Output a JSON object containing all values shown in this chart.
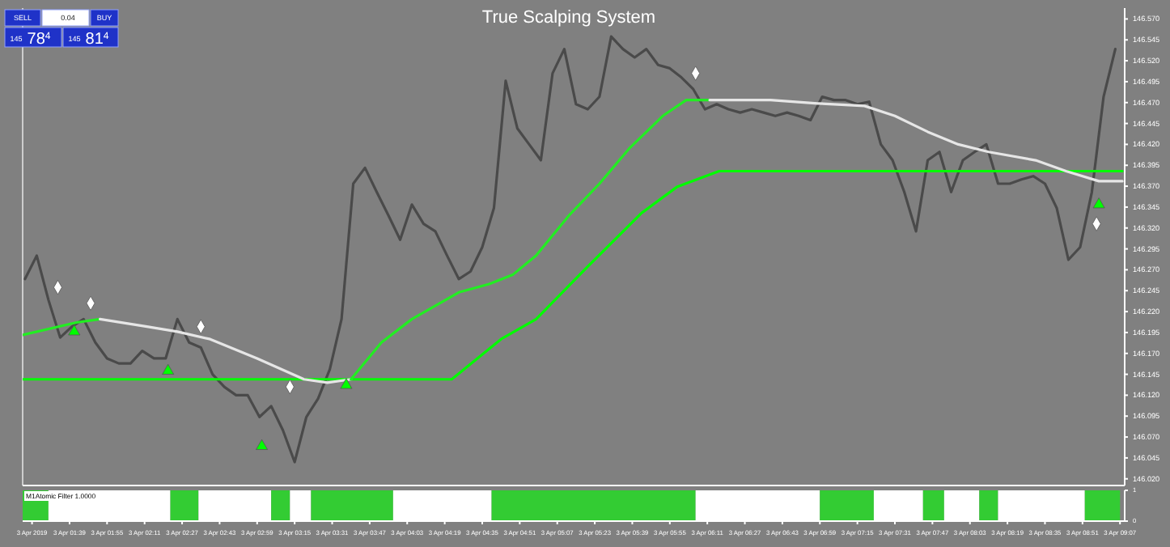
{
  "chart_data": [
    {
      "type": "line",
      "title": "True Scalping System",
      "annotations": [
        "SELL",
        "0.04",
        "BUY",
        "145",
        "78$^{4}$",
        "145",
        "81$^{4}$"
      ],
      "xlim": [
        "2019-04-03T01:19",
        "2019-04-03T09:09"
      ],
      "ylim": [
        146.012,
        146.583
      ],
      "yticks": [
        {
          "value": 146.57,
          "label": "146.570"
        },
        {
          "value": 146.545,
          "label": "146.545"
        },
        {
          "value": 146.52,
          "label": "146.520"
        },
        {
          "value": 146.495,
          "label": "146.495"
        },
        {
          "value": 146.47,
          "label": "146.470"
        },
        {
          "value": 146.445,
          "label": "146.445"
        },
        {
          "value": 146.42,
          "label": "146.420"
        },
        {
          "value": 146.395,
          "label": "146.395"
        },
        {
          "value": 146.37,
          "label": "146.370"
        },
        {
          "value": 146.345,
          "label": "146.345"
        },
        {
          "value": 146.32,
          "label": "146.320"
        },
        {
          "value": 146.295,
          "label": "146.295"
        },
        {
          "value": 146.27,
          "label": "146.270"
        },
        {
          "value": 146.245,
          "label": "146.245"
        },
        {
          "value": 146.22,
          "label": "146.220"
        },
        {
          "value": 146.195,
          "label": "146.195"
        },
        {
          "value": 146.17,
          "label": "146.170"
        },
        {
          "value": 146.145,
          "label": "146.145"
        },
        {
          "value": 146.12,
          "label": "146.120"
        },
        {
          "value": 146.095,
          "label": "146.095"
        },
        {
          "value": 146.07,
          "label": "146.070"
        },
        {
          "value": 146.045,
          "label": "146.045"
        },
        {
          "value": 146.02,
          "label": "146.020"
        }
      ],
      "tick_labels": "y",
      "grid": false,
      "series": [
        {
          "color": "#4a4a4a",
          "x": [
            "2019-04-03T01:20",
            "2019-04-03T01:25",
            "2019-04-03T01:30",
            "2019-04-03T01:35",
            "2019-04-03T01:40",
            "2019-04-03T01:45",
            "2019-04-03T01:50",
            "2019-04-03T01:55",
            "2019-04-03T02:00",
            "2019-04-03T02:05",
            "2019-04-03T02:10",
            "2019-04-03T02:15",
            "2019-04-03T02:20",
            "2019-04-03T02:25",
            "2019-04-03T02:30",
            "2019-04-03T02:35",
            "2019-04-03T02:40",
            "2019-04-03T02:45",
            "2019-04-03T02:50",
            "2019-04-03T02:55",
            "2019-04-03T03:00",
            "2019-04-03T03:05",
            "2019-04-03T03:10",
            "2019-04-03T03:15",
            "2019-04-03T03:20",
            "2019-04-03T03:25",
            "2019-04-03T03:30",
            "2019-04-03T03:35",
            "2019-04-03T03:40",
            "2019-04-03T03:45",
            "2019-04-03T03:50",
            "2019-04-03T03:55",
            "2019-04-03T04:00",
            "2019-04-03T04:05",
            "2019-04-03T04:10",
            "2019-04-03T04:15",
            "2019-04-03T04:20",
            "2019-04-03T04:25",
            "2019-04-03T04:30",
            "2019-04-03T04:35",
            "2019-04-03T04:40",
            "2019-04-03T04:45",
            "2019-04-03T04:50",
            "2019-04-03T04:55",
            "2019-04-03T05:00",
            "2019-04-03T05:05",
            "2019-04-03T05:10",
            "2019-04-03T05:15",
            "2019-04-03T05:20",
            "2019-04-03T05:25",
            "2019-04-03T05:30",
            "2019-04-03T05:35",
            "2019-04-03T05:40",
            "2019-04-03T05:45",
            "2019-04-03T05:50",
            "2019-04-03T05:55",
            "2019-04-03T06:00",
            "2019-04-03T06:05",
            "2019-04-03T06:10",
            "2019-04-03T06:15",
            "2019-04-03T06:20",
            "2019-04-03T06:25",
            "2019-04-03T06:30",
            "2019-04-03T06:35",
            "2019-04-03T06:40",
            "2019-04-03T06:45",
            "2019-04-03T06:50",
            "2019-04-03T06:55",
            "2019-04-03T07:00",
            "2019-04-03T07:05",
            "2019-04-03T07:10",
            "2019-04-03T07:15",
            "2019-04-03T07:20",
            "2019-04-03T07:25",
            "2019-04-03T07:30",
            "2019-04-03T07:35",
            "2019-04-03T07:40",
            "2019-04-03T07:45",
            "2019-04-03T07:50",
            "2019-04-03T07:55",
            "2019-04-03T08:00",
            "2019-04-03T08:05",
            "2019-04-03T08:10",
            "2019-04-03T08:15",
            "2019-04-03T08:20",
            "2019-04-03T08:25",
            "2019-04-03T08:30",
            "2019-04-03T08:35",
            "2019-04-03T08:40",
            "2019-04-03T08:45",
            "2019-04-03T08:50",
            "2019-04-03T08:55",
            "2019-04-03T09:00",
            "2019-04-03T09:05"
          ],
          "values": [
            146.259,
            146.287,
            146.234,
            146.189,
            146.202,
            146.211,
            146.183,
            146.164,
            146.158,
            146.158,
            146.173,
            146.164,
            146.164,
            146.211,
            146.183,
            146.177,
            146.145,
            146.13,
            146.12,
            146.12,
            146.094,
            146.107,
            146.078,
            146.04,
            146.094,
            146.116,
            146.151,
            146.211,
            146.373,
            146.392,
            146.363,
            146.335,
            146.306,
            146.348,
            146.325,
            146.316,
            146.287,
            146.259,
            146.268,
            146.297,
            146.344,
            146.496,
            146.439,
            146.42,
            146.401,
            146.505,
            146.534,
            146.468,
            146.462,
            146.477,
            146.549,
            146.534,
            146.524,
            146.534,
            146.515,
            146.511,
            146.5,
            146.486,
            146.462,
            146.468,
            146.462,
            146.458,
            146.462,
            146.458,
            146.454,
            146.458,
            146.454,
            146.449,
            146.477,
            146.473,
            146.473,
            146.468,
            146.471,
            146.42,
            146.401,
            146.363,
            146.316,
            146.401,
            146.411,
            146.363,
            146.401,
            146.411,
            146.42,
            146.373,
            146.373,
            146.378,
            146.382,
            146.373,
            146.344,
            146.282,
            146.297,
            146.363,
            146.477,
            146.534
          ]
        },
        {
          "color": "#00ff00",
          "x": [
            "2019-04-03T01:19",
            "2019-04-03T04:22",
            "2019-04-03T04:43",
            "2019-04-03T04:58",
            "2019-04-03T05:20",
            "2019-04-03T05:43",
            "2019-04-03T05:58",
            "2019-04-03T06:16",
            "2019-04-03T06:31",
            "2019-04-03T09:08"
          ],
          "values": [
            146.139,
            146.139,
            146.187,
            146.211,
            146.274,
            146.338,
            146.369,
            146.388,
            146.388,
            146.388
          ]
        },
        {
          "color": "#22ee22",
          "x": [
            "2019-04-03T01:19",
            "2019-04-03T01:42",
            "2019-04-03T01:52"
          ],
          "values": [
            146.192,
            146.207,
            146.211
          ]
        },
        {
          "color": "#e6e6e6",
          "x": [
            "2019-04-03T01:52",
            "2019-04-03T02:12",
            "2019-04-03T02:25",
            "2019-04-03T02:39",
            "2019-04-03T02:59",
            "2019-04-03T03:19",
            "2019-04-03T03:29",
            "2019-04-03T03:39"
          ],
          "values": [
            146.211,
            146.202,
            146.196,
            146.187,
            146.164,
            146.139,
            146.135,
            146.139
          ]
        },
        {
          "color": "#22ee22",
          "x": [
            "2019-04-03T03:39",
            "2019-04-03T03:52",
            "2019-04-03T04:05",
            "2019-04-03T04:25",
            "2019-04-03T04:38",
            "2019-04-03T04:48",
            "2019-04-03T04:58",
            "2019-04-03T05:12",
            "2019-04-03T05:25",
            "2019-04-03T05:38",
            "2019-04-03T05:52",
            "2019-04-03T06:02",
            "2019-04-03T06:12"
          ],
          "values": [
            146.139,
            146.183,
            146.211,
            146.243,
            146.253,
            146.264,
            146.287,
            146.335,
            146.373,
            146.416,
            146.454,
            146.473,
            146.473
          ]
        },
        {
          "color": "#e6e6e6",
          "x": [
            "2019-04-03T06:12",
            "2019-04-03T06:38",
            "2019-04-03T06:58",
            "2019-04-03T07:18",
            "2019-04-03T07:31",
            "2019-04-03T07:45",
            "2019-04-03T07:58",
            "2019-04-03T08:11",
            "2019-04-03T08:31",
            "2019-04-03T08:44",
            "2019-04-03T08:58",
            "2019-04-03T09:08"
          ],
          "values": [
            146.473,
            146.473,
            146.469,
            146.466,
            146.454,
            146.435,
            146.42,
            146.411,
            146.401,
            146.388,
            146.376,
            146.376
          ]
        },
        {
          "type": "scatter",
          "marker": "triangle",
          "color": "#00ff00",
          "x": [
            "2019-04-03T01:41",
            "2019-04-03T02:21",
            "2019-04-03T03:01",
            "2019-04-03T03:37",
            "2019-04-03T08:58"
          ],
          "values": [
            146.196,
            146.149,
            146.059,
            146.132,
            146.348
          ]
        },
        {
          "type": "scatter",
          "marker": "diamond",
          "color": "#ffffff",
          "x": [
            "2019-04-03T01:34",
            "2019-04-03T01:48",
            "2019-04-03T02:35",
            "2019-04-03T03:13",
            "2019-04-03T06:06",
            "2019-04-03T08:57"
          ],
          "values": [
            146.249,
            146.23,
            146.202,
            146.13,
            146.505,
            146.325
          ]
        }
      ]
    },
    {
      "type": "histogram",
      "title": "M1Atomic Filter 1.0000",
      "bins": [
        "2019-04-03T01:19",
        "2019-04-03T01:30",
        "2019-04-03T02:22",
        "2019-04-03T02:34",
        "2019-04-03T03:05",
        "2019-04-03T03:13",
        "2019-04-03T03:22",
        "2019-04-03T03:57",
        "2019-04-03T04:39",
        "2019-04-03T06:06",
        "2019-04-03T06:59",
        "2019-04-03T07:22",
        "2019-04-03T07:43",
        "2019-04-03T07:52",
        "2019-04-03T08:07",
        "2019-04-03T08:15",
        "2019-04-03T08:52",
        "2019-04-03T09:07"
      ],
      "values": [
        1,
        1,
        1,
        1,
        1,
        1,
        1,
        1,
        1,
        1,
        1,
        1,
        1,
        1,
        1,
        1,
        1
      ],
      "colors": [
        "#33cc33",
        "#ffffff",
        "#33cc33",
        "#ffffff",
        "#33cc33",
        "#ffffff",
        "#33cc33",
        "#ffffff",
        "#33cc33",
        "#ffffff",
        "#33cc33",
        "#ffffff",
        "#33cc33",
        "#ffffff",
        "#33cc33",
        "#ffffff",
        "#33cc33"
      ],
      "xlim": [
        "2019-04-03T01:19",
        "2019-04-03T09:09"
      ],
      "ylim": [
        0,
        1
      ],
      "yticks": [
        0,
        1
      ],
      "xticks": [
        {
          "value": "2019-04-03T01:23",
          "label": "3 Apr 2019"
        },
        {
          "value": "2019-04-03T01:39",
          "label": "3 Apr 01:39"
        },
        {
          "value": "2019-04-03T01:55",
          "label": "3 Apr 01:55"
        },
        {
          "value": "2019-04-03T02:11",
          "label": "3 Apr 02:11"
        },
        {
          "value": "2019-04-03T02:27",
          "label": "3 Apr 02:27"
        },
        {
          "value": "2019-04-03T02:43",
          "label": "3 Apr 02:43"
        },
        {
          "value": "2019-04-03T02:59",
          "label": "3 Apr 02:59"
        },
        {
          "value": "2019-04-03T03:15",
          "label": "3 Apr 03:15"
        },
        {
          "value": "2019-04-03T03:31",
          "label": "3 Apr 03:31"
        },
        {
          "value": "2019-04-03T03:47",
          "label": "3 Apr 03:47"
        },
        {
          "value": "2019-04-03T04:03",
          "label": "3 Apr 04:03"
        },
        {
          "value": "2019-04-03T04:19",
          "label": "3 Apr 04:19"
        },
        {
          "value": "2019-04-03T04:35",
          "label": "3 Apr 04:35"
        },
        {
          "value": "2019-04-03T04:51",
          "label": "3 Apr 04:51"
        },
        {
          "value": "2019-04-03T05:07",
          "label": "3 Apr 05:07"
        },
        {
          "value": "2019-04-03T05:23",
          "label": "3 Apr 05:23"
        },
        {
          "value": "2019-04-03T05:39",
          "label": "3 Apr 05:39"
        },
        {
          "value": "2019-04-03T05:55",
          "label": "3 Apr 05:55"
        },
        {
          "value": "2019-04-03T06:11",
          "label": "3 Apr 06:11"
        },
        {
          "value": "2019-04-03T06:27",
          "label": "3 Apr 06:27"
        },
        {
          "value": "2019-04-03T06:43",
          "label": "3 Apr 06:43"
        },
        {
          "value": "2019-04-03T06:59",
          "label": "3 Apr 06:59"
        },
        {
          "value": "2019-04-03T07:15",
          "label": "3 Apr 07:15"
        },
        {
          "value": "2019-04-03T07:31",
          "label": "3 Apr 07:31"
        },
        {
          "value": "2019-04-03T07:47",
          "label": "3 Apr 07:47"
        },
        {
          "value": "2019-04-03T08:03",
          "label": "3 Apr 08:03"
        },
        {
          "value": "2019-04-03T08:19",
          "label": "3 Apr 08:19"
        },
        {
          "value": "2019-04-03T08:35",
          "label": "3 Apr 08:35"
        },
        {
          "value": "2019-04-03T08:51",
          "label": "3 Apr 08:51"
        },
        {
          "value": "2019-04-03T09:07",
          "label": "3 Apr 09:07"
        }
      ],
      "grid": false
    }
  ]
}
